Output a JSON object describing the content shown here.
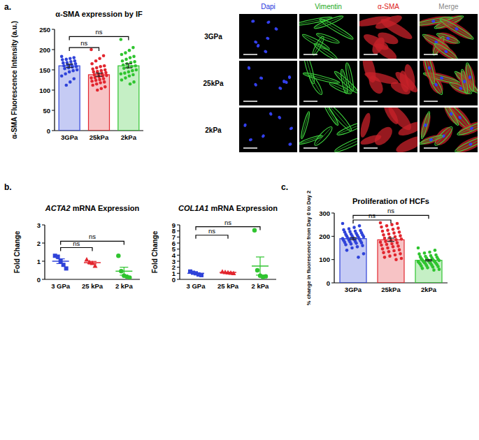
{
  "panel_labels": [
    "a.",
    "b.",
    "c."
  ],
  "image_grid": {
    "columns": [
      "Dapi",
      "Vimentin",
      "α-SMA",
      "Merge"
    ],
    "rows": [
      "3GPa",
      "25kPa",
      "2kPa"
    ]
  },
  "chart_data": [
    {
      "type": "bar",
      "title": "α-SMA expression by IF",
      "y_label": "α-SMA Fluorescence Intensity (a.u.)",
      "categories": [
        "3GPa",
        "25kPa",
        "2kPa"
      ],
      "values": [
        160,
        138,
        160
      ],
      "errors": [
        4,
        4,
        5
      ],
      "colors": [
        "#2f43d9",
        "#e2262e",
        "#2fc42f"
      ],
      "points": [
        [
          183,
          180,
          178,
          176,
          175,
          172,
          170,
          168,
          167,
          165,
          163,
          162,
          160,
          158,
          157,
          155,
          153,
          150,
          148,
          145,
          140,
          135,
          128,
          120,
          112
        ],
        [
          200,
          185,
          178,
          172,
          165,
          160,
          158,
          155,
          152,
          150,
          148,
          146,
          145,
          143,
          141,
          140,
          138,
          136,
          135,
          133,
          131,
          130,
          128,
          126,
          124,
          122,
          120,
          118,
          115,
          112,
          108,
          104,
          100
        ],
        [
          225,
          205,
          198,
          192,
          188,
          183,
          180,
          176,
          172,
          170,
          168,
          165,
          162,
          160,
          158,
          156,
          154,
          150,
          148,
          145,
          142,
          140,
          138,
          135,
          130,
          125,
          120,
          115
        ]
      ],
      "ylim": [
        0,
        250
      ],
      "yticks": [
        0,
        50,
        100,
        150,
        200,
        250
      ],
      "annotations": [
        {
          "text": "ns",
          "from": 0,
          "to": 1,
          "y": 205
        },
        {
          "text": "ns",
          "from": 0,
          "to": 2,
          "y": 232
        }
      ]
    },
    {
      "type": "dot_plot",
      "title": "ACTA2 mRNA Expression",
      "y_label": "Fold Change",
      "categories": [
        "3 GPa",
        "25 kPa",
        "2 kPa"
      ],
      "values": [
        1.0,
        0.92,
        0.45
      ],
      "errors": [
        0.13,
        0.07,
        0.22
      ],
      "colors": [
        "#2f43d9",
        "#e2262e",
        "#2fc42f"
      ],
      "points": [
        [
          1.3,
          1.25,
          1.0,
          0.8,
          0.6
        ],
        [
          1.1,
          0.95,
          0.9,
          0.75
        ],
        [
          1.3,
          0.45,
          0.2,
          0.15,
          0.1
        ]
      ],
      "ylim": [
        0,
        3
      ],
      "yticks": [
        0,
        1,
        2,
        3
      ],
      "annotations": [
        {
          "text": "ns",
          "from": 0,
          "to": 1,
          "y": 1.75
        },
        {
          "text": "ns",
          "from": 0,
          "to": 2,
          "y": 2.1
        }
      ]
    },
    {
      "type": "dot_plot",
      "title": "COL1A1 mRNA Expression",
      "y_label": "Fold Change",
      "categories": [
        "3 GPa",
        "25 kPa",
        "2 kPa"
      ],
      "values": [
        1.0,
        1.15,
        2.2
      ],
      "errors": [
        0.1,
        0.05,
        1.5
      ],
      "colors": [
        "#2f43d9",
        "#e2262e",
        "#2fc42f"
      ],
      "points": [
        [
          1.3,
          1.1,
          1.0,
          0.8,
          0.7
        ],
        [
          1.3,
          1.2,
          1.15,
          1.1,
          1.05
        ],
        [
          8.1,
          1.5,
          0.6,
          0.4,
          0.5
        ]
      ],
      "ylim": [
        0,
        9
      ],
      "yticks": [
        0,
        1,
        2,
        3,
        4,
        5,
        6,
        7,
        8,
        9
      ],
      "annotations": [
        {
          "text": "ns",
          "from": 0,
          "to": 1,
          "y": 7.3
        },
        {
          "text": "ns",
          "from": 0,
          "to": 2,
          "y": 8.7
        }
      ]
    },
    {
      "type": "bar",
      "title": "Proliferation of HCFs",
      "y_label": "% change in fluorescence from Day 0 to Day 2",
      "categories": [
        "3GPa",
        "25kPa",
        "2kPa"
      ],
      "values": [
        190,
        185,
        97
      ],
      "errors": [
        4,
        7,
        3
      ],
      "colors": [
        "#2f43d9",
        "#e2262e",
        "#2fc42f"
      ],
      "points": [
        [
          255,
          245,
          238,
          232,
          228,
          225,
          222,
          220,
          218,
          215,
          212,
          210,
          208,
          206,
          204,
          202,
          200,
          198,
          196,
          194,
          192,
          190,
          188,
          186,
          184,
          182,
          180,
          178,
          176,
          174,
          172,
          170,
          167,
          164,
          160,
          155,
          150,
          140,
          125,
          110
        ],
        [
          258,
          255,
          250,
          245,
          240,
          235,
          230,
          226,
          222,
          218,
          214,
          210,
          206,
          202,
          198,
          195,
          192,
          188,
          185,
          182,
          178,
          175,
          172,
          168,
          165,
          162,
          158,
          155,
          150,
          146,
          142,
          138,
          134,
          130,
          125,
          120,
          115,
          110,
          105,
          100
        ],
        [
          150,
          140,
          132,
          128,
          124,
          120,
          117,
          114,
          112,
          110,
          108,
          106,
          104,
          102,
          100,
          99,
          98,
          96,
          95,
          94,
          92,
          91,
          90,
          88,
          87,
          86,
          84,
          83,
          82,
          80,
          78,
          76,
          74,
          72,
          70,
          68,
          65,
          62,
          58,
          55
        ]
      ],
      "ylim": [
        0,
        300
      ],
      "yticks": [
        0,
        100,
        200,
        300
      ],
      "annotations": [
        {
          "text": "ns",
          "from": 0,
          "to": 1,
          "y": 270
        },
        {
          "text": "ns",
          "from": 0,
          "to": 2,
          "y": 290
        }
      ]
    }
  ]
}
